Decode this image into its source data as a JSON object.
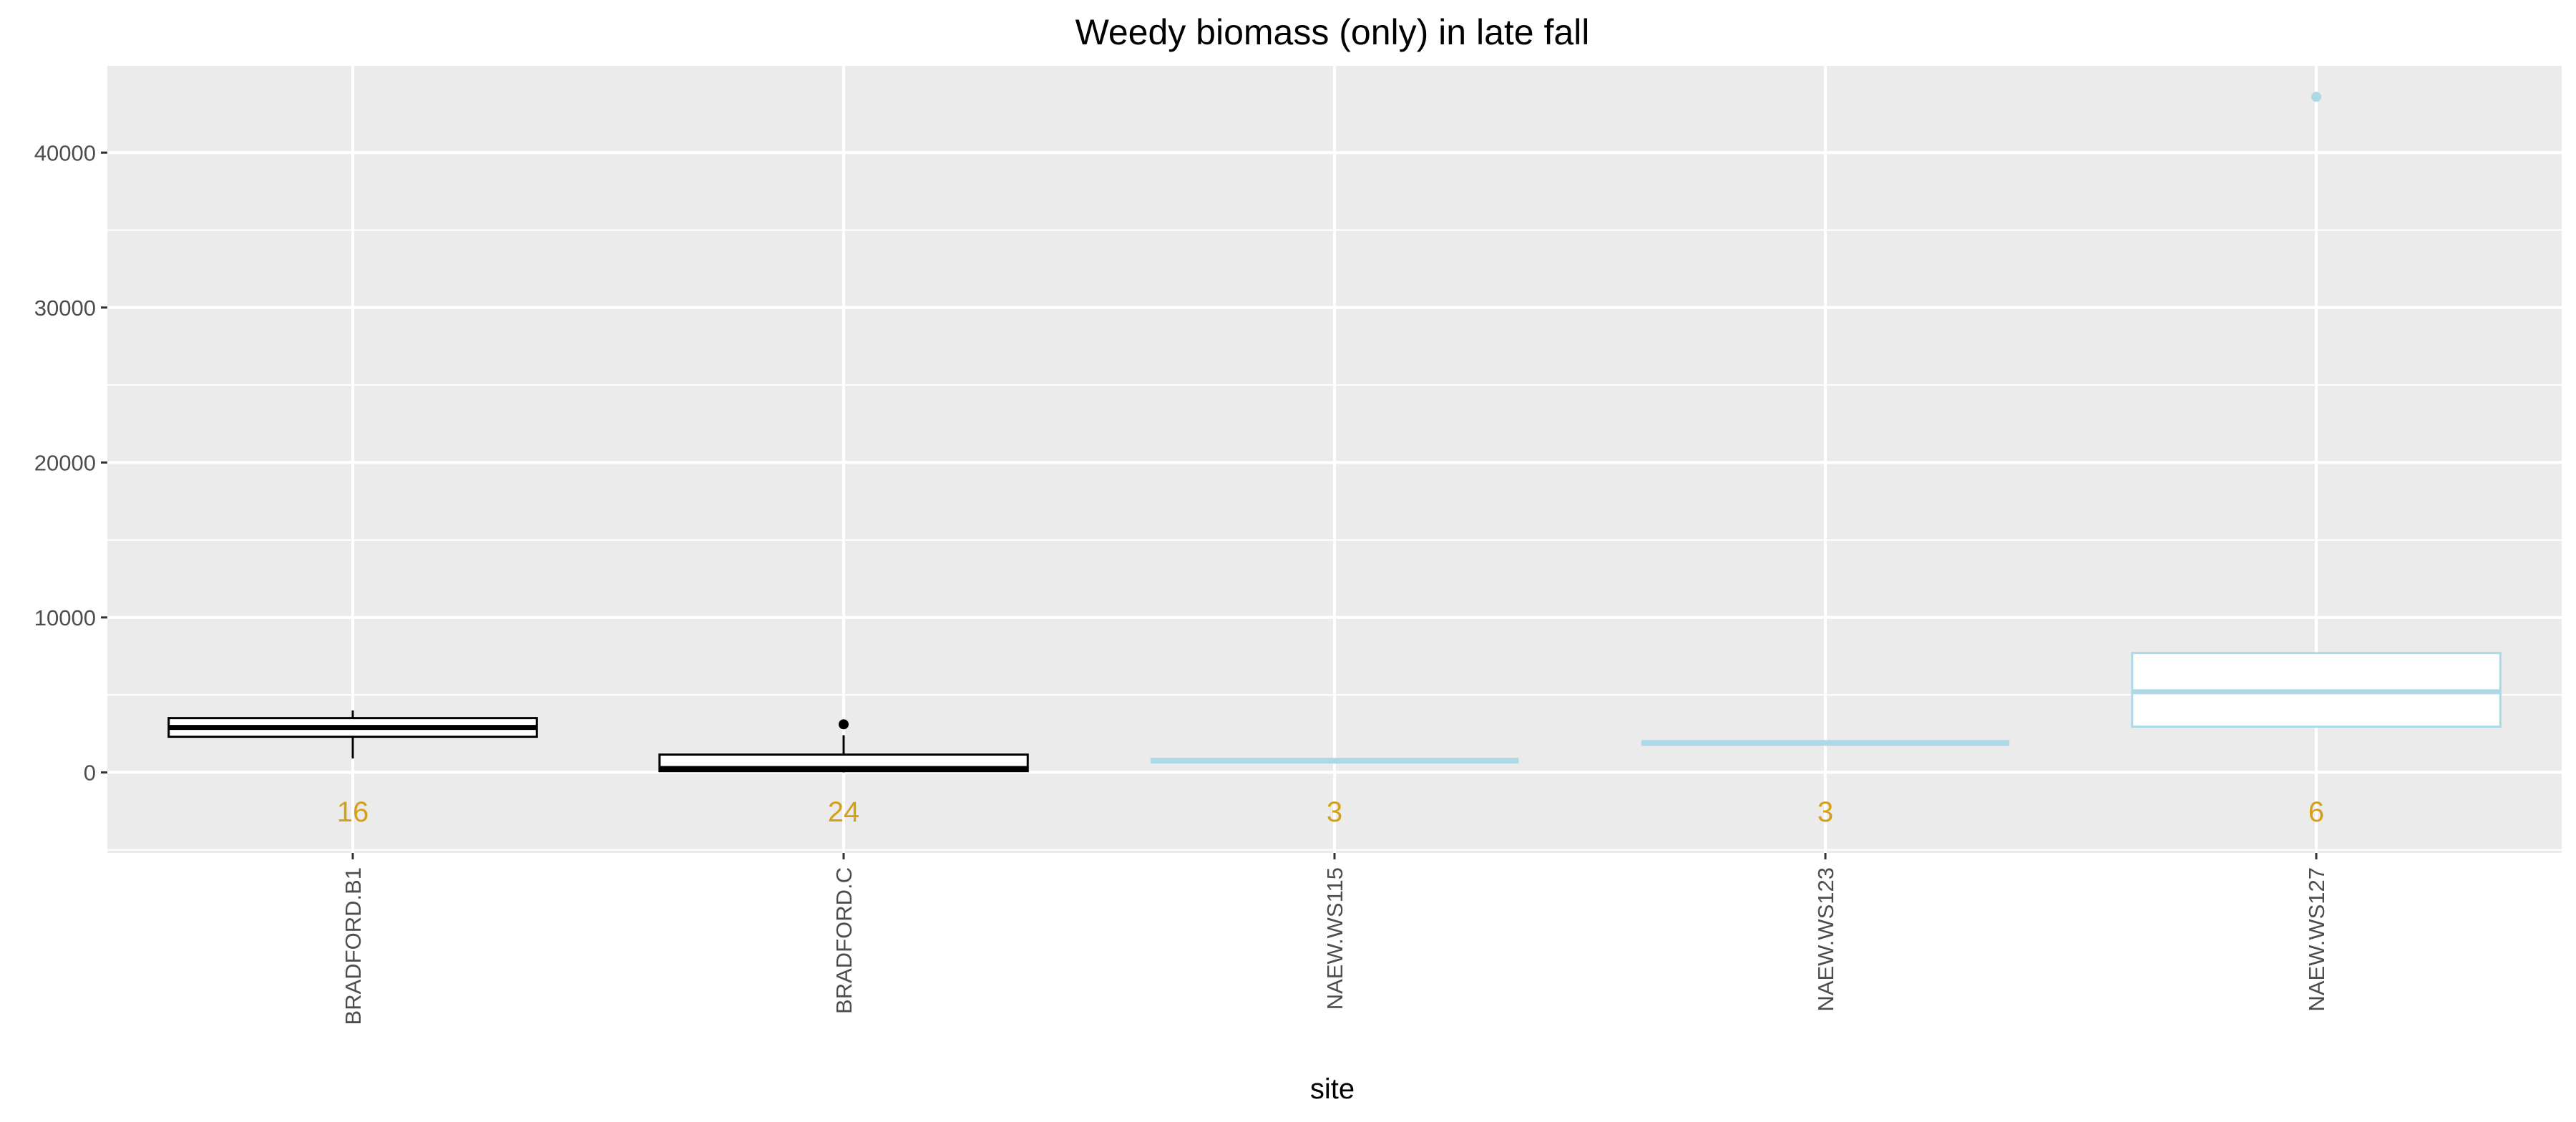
{
  "chart_data": {
    "type": "box",
    "title": "Weedy biomass (only) in late fall",
    "xlabel": "site",
    "ylabel": "",
    "ylim": [
      -5200,
      45600
    ],
    "yticks": [
      0,
      10000,
      20000,
      30000,
      40000
    ],
    "ytick_labels": [
      "0",
      "10000",
      "20000",
      "30000",
      "40000"
    ],
    "grid": true,
    "count_color": "#d4a017",
    "categories": [
      "BRADFORD.B1",
      "BRADFORD.C",
      "NAEW.WS115",
      "NAEW.WS123",
      "NAEW.WS127"
    ],
    "boxes": [
      {
        "site": "BRADFORD.B1",
        "color": "#000000",
        "q1": 2300,
        "median": 2900,
        "q3": 3500,
        "whisker_low": 900,
        "whisker_high": 4000,
        "outliers": [],
        "n": "16"
      },
      {
        "site": "BRADFORD.C",
        "color": "#000000",
        "q1": 80,
        "median": 250,
        "q3": 1150,
        "whisker_low": 0,
        "whisker_high": 2400,
        "outliers": [
          3100
        ],
        "n": "24"
      },
      {
        "site": "NAEW.WS115",
        "color": "#add8e6",
        "q1": 700,
        "median": 750,
        "q3": 800,
        "whisker_low": 700,
        "whisker_high": 800,
        "outliers": [],
        "n": "3"
      },
      {
        "site": "NAEW.WS123",
        "color": "#add8e6",
        "q1": 1850,
        "median": 1900,
        "q3": 1950,
        "whisker_low": 1850,
        "whisker_high": 1950,
        "outliers": [],
        "n": "3"
      },
      {
        "site": "NAEW.WS127",
        "color": "#add8e6",
        "q1": 2950,
        "median": 5200,
        "q3": 7700,
        "whisker_low": 2900,
        "whisker_high": 7700,
        "outliers": [
          43600
        ],
        "n": "6"
      }
    ]
  }
}
